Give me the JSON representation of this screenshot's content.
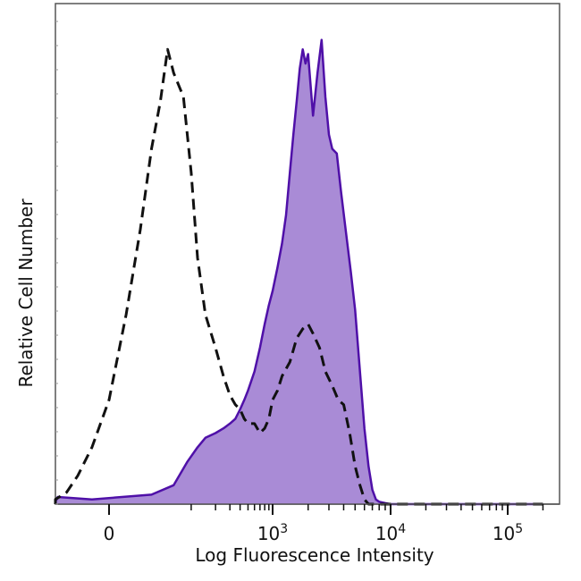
{
  "chart_data": {
    "type": "area",
    "title": "",
    "xlabel": "Log Fluorescence Intensity",
    "ylabel": "Relative Cell Number",
    "x_scale": "biexponential",
    "xlim": [
      -300,
      200000
    ],
    "ylim": [
      0,
      100
    ],
    "x_ticks": [
      {
        "value": 0,
        "base": "0",
        "exp": ""
      },
      {
        "value": 1000,
        "base": "10",
        "exp": "3"
      },
      {
        "value": 10000,
        "base": "10",
        "exp": "4"
      },
      {
        "value": 100000,
        "base": "10",
        "exp": "5"
      }
    ],
    "grid": false,
    "legend": "none",
    "colors": {
      "stained_fill": "#a98bd6",
      "stained_line": "#4f10a8",
      "control_line": "#111111",
      "frame": "#555555"
    },
    "series": [
      {
        "style": "filled-solid",
        "x": [
          -150,
          -80,
          -40,
          -10,
          30,
          60,
          90,
          120,
          150,
          200,
          250,
          300,
          350,
          400,
          450,
          500,
          600,
          700,
          800,
          900,
          1000,
          1100,
          1200,
          1300,
          1400,
          1500,
          1600,
          1700,
          1800,
          1900,
          2000,
          2200,
          2400,
          2600,
          2800,
          3000,
          3200,
          3500,
          3800,
          4200,
          4600,
          5000,
          5500,
          6000,
          6500,
          7000,
          7500,
          8000,
          9000,
          10000,
          20000,
          100000,
          200000
        ],
        "y": [
          0.2,
          0.5,
          1.5,
          1,
          2,
          4,
          9,
          12,
          14,
          15,
          16,
          17,
          18,
          20,
          22,
          24,
          28,
          33,
          38,
          42,
          45,
          50,
          55,
          61,
          70,
          78,
          85,
          92,
          96,
          93,
          95,
          82,
          91,
          98,
          86,
          78,
          75,
          74,
          66,
          57,
          49,
          41,
          28,
          16,
          8,
          3,
          1,
          0.5,
          0.2,
          0,
          0,
          0,
          0
        ]
      },
      {
        "style": "dashed-outline",
        "x": [
          -150,
          -80,
          -50,
          -30,
          -20,
          -10,
          0,
          10,
          20,
          30,
          40,
          50,
          60,
          80,
          100,
          120,
          150,
          200,
          250,
          300,
          350,
          400,
          450,
          500,
          600,
          700,
          800,
          900,
          1000,
          1100,
          1200,
          1400,
          1600,
          1800,
          2000,
          2200,
          2500,
          2800,
          3200,
          3600,
          4000,
          4500,
          5000,
          5500,
          6000,
          6500,
          7000,
          8000,
          10000,
          200000
        ],
        "y": [
          0,
          0,
          1,
          2.5,
          6,
          12,
          22,
          40,
          58,
          75,
          85,
          96,
          91,
          86,
          70,
          52,
          40,
          33,
          27,
          23,
          21,
          20,
          18,
          17,
          17,
          15,
          16,
          18,
          22,
          24,
          27,
          30,
          35,
          37,
          38,
          36,
          33,
          28,
          25,
          22,
          21,
          15,
          8,
          4,
          1,
          0,
          0,
          0,
          0,
          0
        ]
      }
    ]
  }
}
